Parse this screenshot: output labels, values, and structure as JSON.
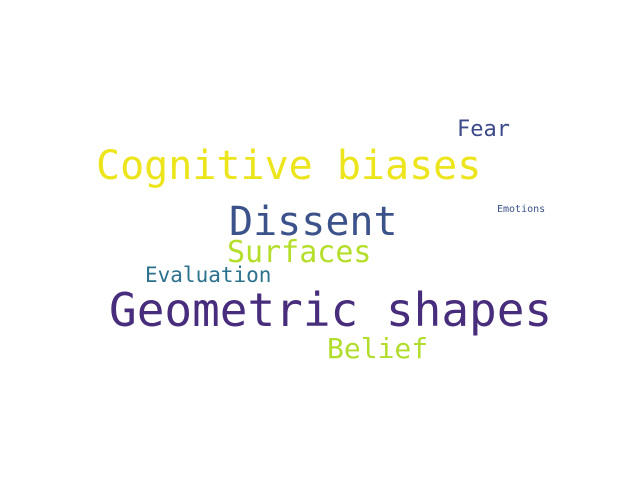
{
  "words": {
    "cognitive_biases": {
      "text": "Cognitive biases",
      "color": "#ede51b"
    },
    "dissent": {
      "text": "Dissent",
      "color": "#3b528b"
    },
    "surfaces": {
      "text": "Surfaces",
      "color": "#b5de2b"
    },
    "evaluation": {
      "text": "Evaluation",
      "color": "#2c728e"
    },
    "geometric_shapes": {
      "text": "Geometric shapes",
      "color": "#472d7b"
    },
    "belief": {
      "text": "Belief",
      "color": "#b2dd2d"
    },
    "fear": {
      "text": "Fear",
      "color": "#3e4989"
    },
    "emotions": {
      "text": "Emotions",
      "color": "#3b528b"
    }
  }
}
